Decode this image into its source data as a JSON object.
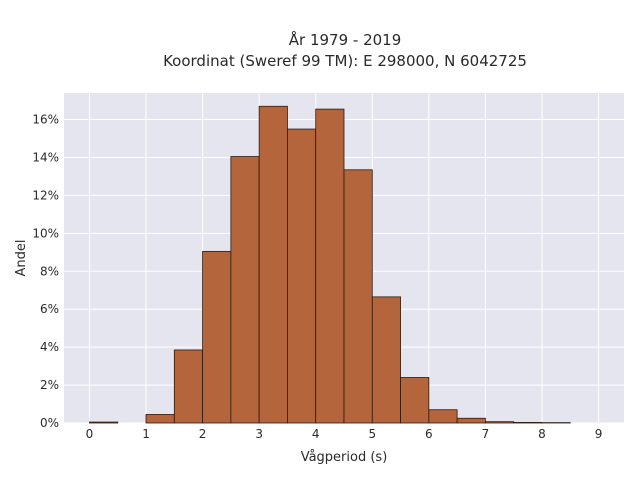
{
  "chart_data": {
    "type": "bar",
    "title": "År 1979 - 2019",
    "subtitle": "Koordinat (Sweref 99 TM): E 298000, N 6042725",
    "xlabel": "Vågperiod (s)",
    "ylabel": "Andel",
    "bin_width": 0.5,
    "bins": [
      {
        "start": 0.0,
        "value": 0.05
      },
      {
        "start": 0.5,
        "value": 0.0
      },
      {
        "start": 1.0,
        "value": 0.45
      },
      {
        "start": 1.5,
        "value": 3.85
      },
      {
        "start": 2.0,
        "value": 9.05
      },
      {
        "start": 2.5,
        "value": 14.05
      },
      {
        "start": 3.0,
        "value": 16.7
      },
      {
        "start": 3.5,
        "value": 15.5
      },
      {
        "start": 4.0,
        "value": 16.55
      },
      {
        "start": 4.5,
        "value": 13.35
      },
      {
        "start": 5.0,
        "value": 6.65
      },
      {
        "start": 5.5,
        "value": 2.4
      },
      {
        "start": 6.0,
        "value": 0.7
      },
      {
        "start": 6.5,
        "value": 0.25
      },
      {
        "start": 7.0,
        "value": 0.07
      },
      {
        "start": 7.5,
        "value": 0.03
      },
      {
        "start": 8.0,
        "value": 0.02
      },
      {
        "start": 8.5,
        "value": 0.0
      }
    ],
    "xlim": [
      -0.45,
      9.45
    ],
    "ylim": [
      0,
      17.4
    ],
    "xticks": [
      0,
      1,
      2,
      3,
      4,
      5,
      6,
      7,
      8,
      9
    ],
    "yticks": [
      0,
      2,
      4,
      6,
      8,
      10,
      12,
      14,
      16
    ],
    "ytick_labels": [
      "0%",
      "2%",
      "4%",
      "6%",
      "8%",
      "10%",
      "12%",
      "14%",
      "16%"
    ],
    "grid": true,
    "bar_color": "#b5653b",
    "bar_edge_color": "#2b1a10",
    "plot_background": "#e5e5ef"
  }
}
